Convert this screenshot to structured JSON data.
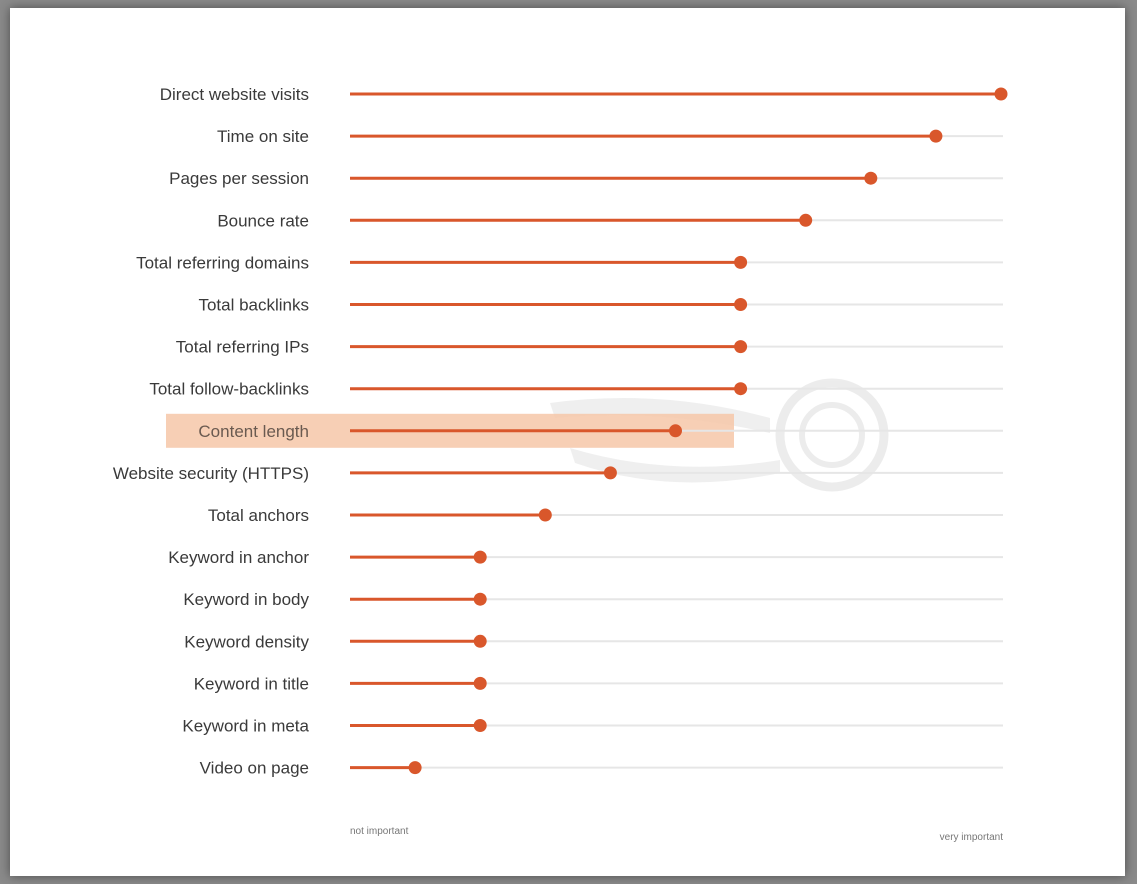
{
  "chart_data": {
    "type": "lollipop",
    "categories": [
      "Direct website visits",
      "Time on site",
      "Pages per session",
      "Bounce rate",
      "Total referring domains",
      "Total backlinks",
      "Total referring IPs",
      "Total follow-backlinks",
      "Content length",
      "Website security (HTTPS)",
      "Total anchors",
      "Keyword in anchor",
      "Keyword in body",
      "Keyword density",
      "Keyword in title",
      "Keyword in meta",
      "Video on page"
    ],
    "values": [
      1.0,
      0.9,
      0.8,
      0.7,
      0.6,
      0.6,
      0.6,
      0.6,
      0.5,
      0.4,
      0.3,
      0.2,
      0.2,
      0.2,
      0.2,
      0.2,
      0.1
    ],
    "xlim": [
      0,
      1
    ],
    "highlighted_category": "Content length",
    "axis_min_label": "not important",
    "axis_max_label": "very important",
    "grid": false,
    "colors": {
      "marker": "#d9572b",
      "stem": "#d9572b",
      "track": "#e6e6e6",
      "highlight": "#f6c7a8",
      "watermark": "#e9e9e9"
    }
  }
}
